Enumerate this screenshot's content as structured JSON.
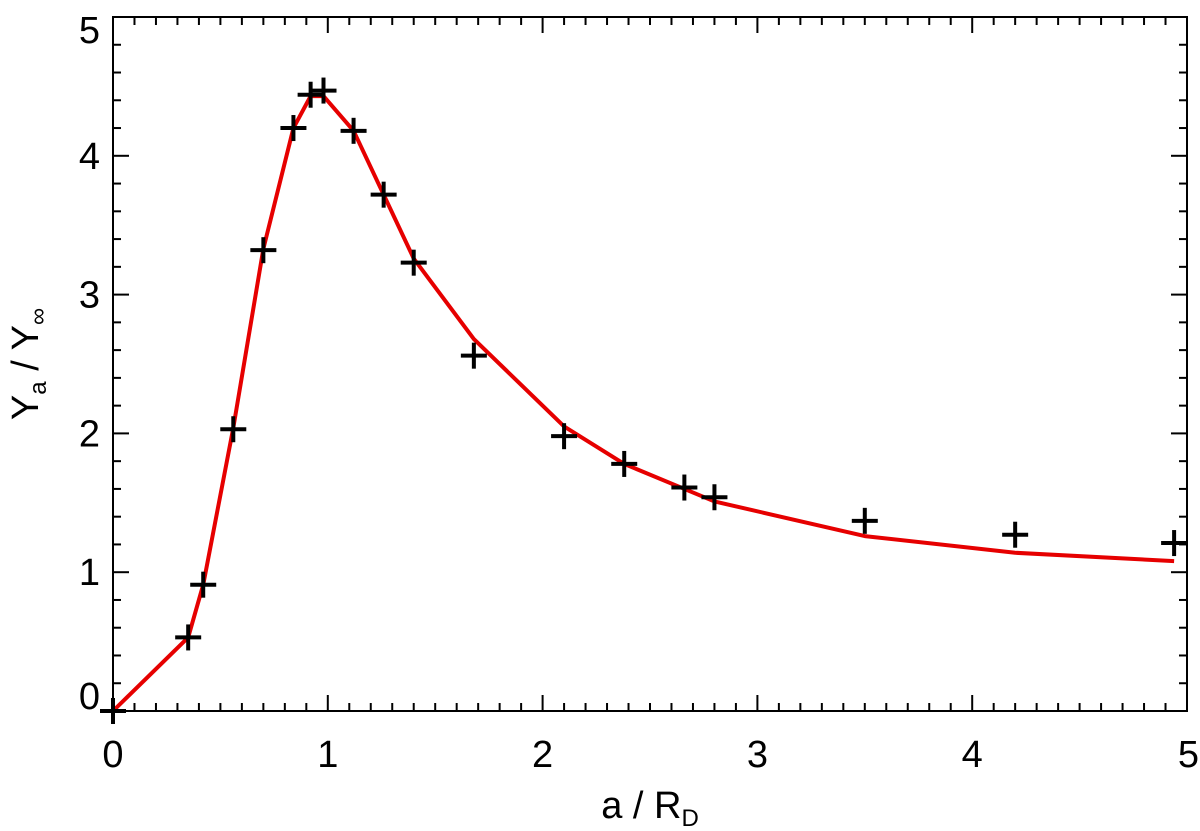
{
  "chart_data": {
    "type": "line",
    "xlabel": {
      "main": "a / R",
      "sub": "D"
    },
    "ylabel": {
      "main": "Y",
      "sub": "a",
      "mid": " / Y",
      "sub2": "∞"
    },
    "xlim": [
      0,
      5
    ],
    "ylim": [
      0,
      5
    ],
    "xticks": [
      "0",
      "1",
      "2",
      "3",
      "4",
      "5"
    ],
    "yticks": [
      "0",
      "1",
      "2",
      "3",
      "4",
      "5"
    ],
    "grid": false,
    "series": [
      {
        "kind": "line",
        "color": "#e60000",
        "x": [
          0.0,
          0.35,
          0.42,
          0.56,
          0.7,
          0.84,
          0.92,
          0.98,
          1.12,
          1.26,
          1.4,
          1.68,
          2.1,
          2.38,
          2.66,
          2.8,
          3.5,
          4.2,
          4.94
        ],
        "y": [
          0.0,
          0.53,
          0.91,
          2.04,
          3.33,
          4.2,
          4.43,
          4.43,
          4.18,
          3.72,
          3.26,
          2.68,
          2.05,
          1.78,
          1.6,
          1.51,
          1.26,
          1.14,
          1.08
        ]
      },
      {
        "kind": "markers",
        "marker": "+",
        "color": "#000000",
        "x": [
          0.0,
          0.35,
          0.42,
          0.56,
          0.7,
          0.84,
          0.92,
          0.98,
          1.12,
          1.26,
          1.4,
          1.68,
          2.1,
          2.38,
          2.66,
          2.8,
          3.5,
          4.2,
          4.94
        ],
        "y": [
          0.0,
          0.53,
          0.91,
          2.03,
          3.32,
          4.2,
          4.44,
          4.47,
          4.18,
          3.72,
          3.23,
          2.56,
          1.98,
          1.78,
          1.61,
          1.54,
          1.37,
          1.27,
          1.21
        ]
      }
    ]
  }
}
